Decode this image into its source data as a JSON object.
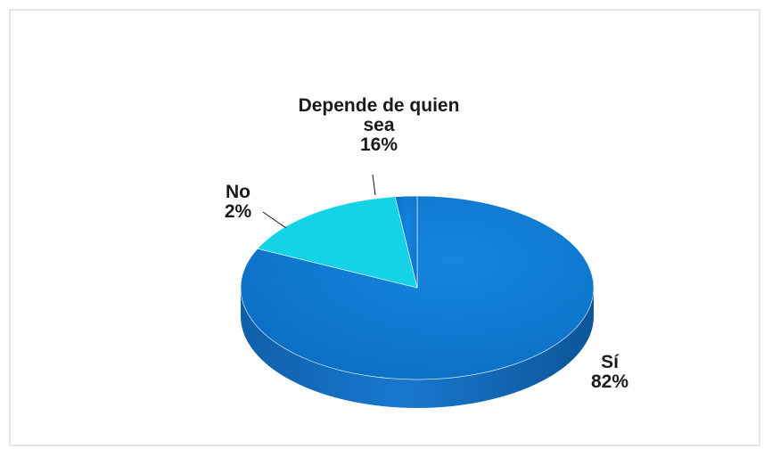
{
  "chart_data": {
    "type": "pie",
    "title": "",
    "slices": [
      {
        "label": "Sí",
        "value": 82,
        "value_label": "82%",
        "color": "#0a72c7"
      },
      {
        "label": "Depende de quien sea",
        "value": 16,
        "value_label": "16%",
        "color": "#14d3e6"
      },
      {
        "label": "No",
        "value": 2,
        "value_label": "2%",
        "color": "#0a72c7"
      }
    ],
    "style": "3d",
    "legend": "none",
    "labels_outside": true
  }
}
